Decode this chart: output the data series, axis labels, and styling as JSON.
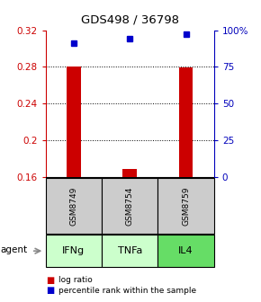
{
  "title": "GDS498 / 36798",
  "categories": [
    "IFNg",
    "TNFa",
    "IL4"
  ],
  "sample_ids": [
    "GSM8749",
    "GSM8754",
    "GSM8759"
  ],
  "bar_values": [
    0.28,
    0.168,
    0.279
  ],
  "bar_base": 0.16,
  "percentile_values": [
    91,
    94,
    97
  ],
  "percentile_scale_min": 0,
  "percentile_scale_max": 100,
  "ylim_left": [
    0.16,
    0.32
  ],
  "yticks_left": [
    0.16,
    0.2,
    0.24,
    0.28,
    0.32
  ],
  "yticks_right": [
    0,
    25,
    50,
    75,
    100
  ],
  "bar_color": "#cc0000",
  "dot_color": "#0000cc",
  "agent_colors": [
    "#ccffcc",
    "#ccffcc",
    "#66dd66"
  ],
  "sample_bg": "#cccccc",
  "legend_box_red": "#cc0000",
  "legend_box_blue": "#0000cc",
  "left_axis_color": "#cc0000",
  "right_axis_color": "#0000bb",
  "grid_yticks": [
    0.2,
    0.24,
    0.28
  ]
}
